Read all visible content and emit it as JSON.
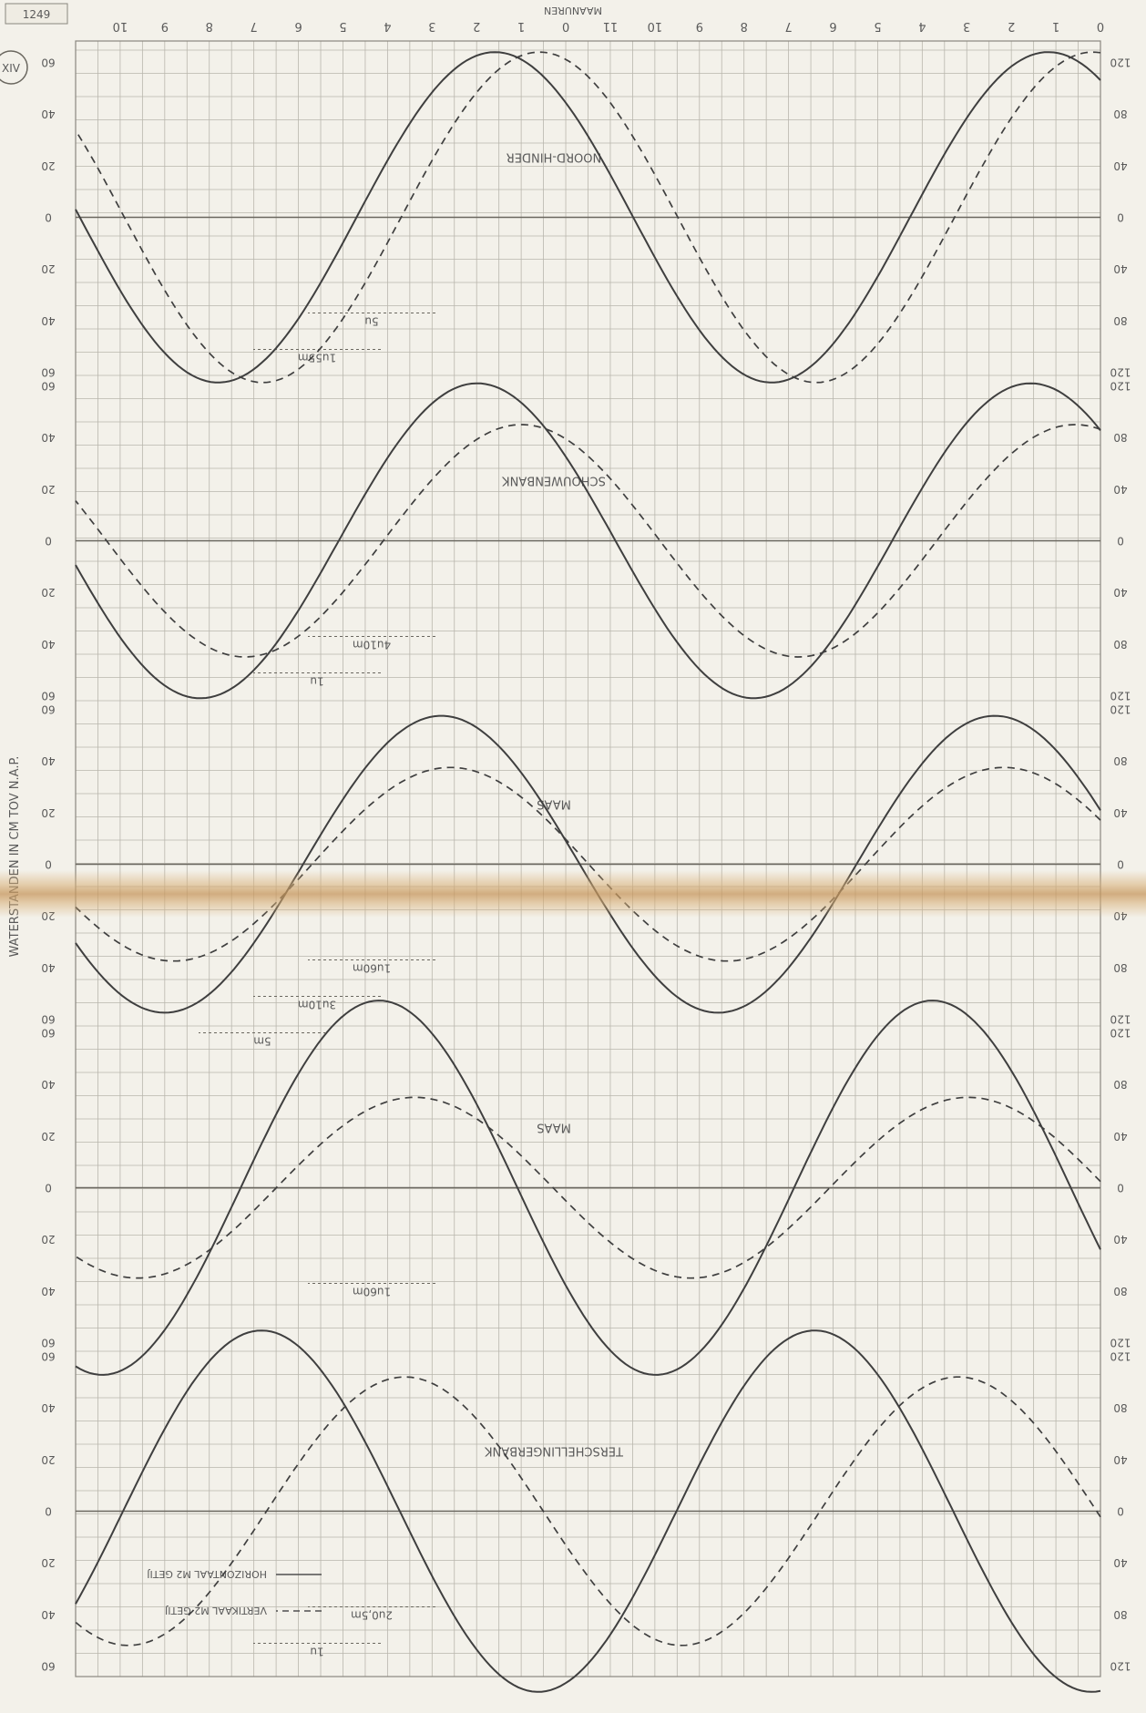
{
  "sheet": {
    "code": "1249",
    "page_mark": "XIV",
    "left_axis_title": "WATERSTANDEN IN CM TOV N.A.P.",
    "top_axis_title": "MAANUREN"
  },
  "chart_data": {
    "type": "line",
    "rendered_rotated_180": true,
    "hour_ticks": [
      "0",
      "1",
      "2",
      "3",
      "4",
      "5",
      "6",
      "7",
      "8",
      "9",
      "10",
      "11",
      "0",
      "1",
      "2",
      "3",
      "4",
      "5",
      "6",
      "7",
      "8",
      "9",
      "10"
    ],
    "legend": [
      {
        "label": "VERTIKAAL M2 GETIJ",
        "style": "dashed"
      },
      {
        "label": "HORIZONTAAL M2 GETIJ",
        "style": "solid"
      }
    ],
    "panels": [
      {
        "name": "TERSCHELLINGERBANK",
        "left_ticks": [
          "120",
          "80",
          "40",
          "0",
          "40",
          "80",
          "120"
        ],
        "right_ticks": [
          "60",
          "40",
          "20",
          "0",
          "20",
          "40",
          "60"
        ],
        "annotations": [
          "2u0,5m",
          "1u"
        ],
        "horizontal": {
          "amplitude": 140,
          "phase_hours": 0.2
        },
        "vertical": {
          "amplitude": 104,
          "phase_hours": 9.4
        }
      },
      {
        "name": "MAAS",
        "left_ticks": [
          "120",
          "80",
          "40",
          "0",
          "40",
          "80",
          "120"
        ],
        "right_ticks": [
          "60",
          "40",
          "20",
          "0",
          "20",
          "40",
          "60"
        ],
        "annotations": [
          "1u60m"
        ],
        "horizontal": {
          "amplitude": 145,
          "phase_hours": 22.4
        },
        "vertical": {
          "amplitude": 70,
          "phase_hours": 21.6
        }
      },
      {
        "name": "MAAS",
        "left_ticks": [
          "120",
          "80",
          "40",
          "0",
          "40",
          "80",
          "120"
        ],
        "right_ticks": [
          "60",
          "40",
          "20",
          "0",
          "20",
          "40",
          "60"
        ],
        "annotations": [
          "1u60m",
          "3u10m",
          "5m"
        ],
        "horizontal": {
          "amplitude": 115,
          "phase_hours": 21.0
        },
        "vertical": {
          "amplitude": 75,
          "phase_hours": 20.8
        }
      },
      {
        "name": "SCHOUWENBANK",
        "left_ticks": [
          "120",
          "80",
          "40",
          "0",
          "40",
          "80",
          "120"
        ],
        "right_ticks": [
          "60",
          "40",
          "20",
          "0",
          "20",
          "40",
          "60"
        ],
        "annotations": [
          "4u10m",
          "1u"
        ],
        "horizontal": {
          "amplitude": 122,
          "phase_hours": 20.2
        },
        "vertical": {
          "amplitude": 90,
          "phase_hours": 19.2
        }
      },
      {
        "name": "NOORD-HINDER",
        "left_ticks": [
          "120",
          "80",
          "40",
          "0",
          "40",
          "80",
          "120"
        ],
        "right_ticks": [
          "60",
          "40",
          "20",
          "0",
          "20",
          "40",
          "60"
        ],
        "annotations": [
          "5u",
          "1u55m"
        ],
        "horizontal": {
          "amplitude": 128,
          "phase_hours": 19.8
        },
        "vertical": {
          "amplitude": 128,
          "phase_hours": 18.8
        }
      }
    ]
  }
}
